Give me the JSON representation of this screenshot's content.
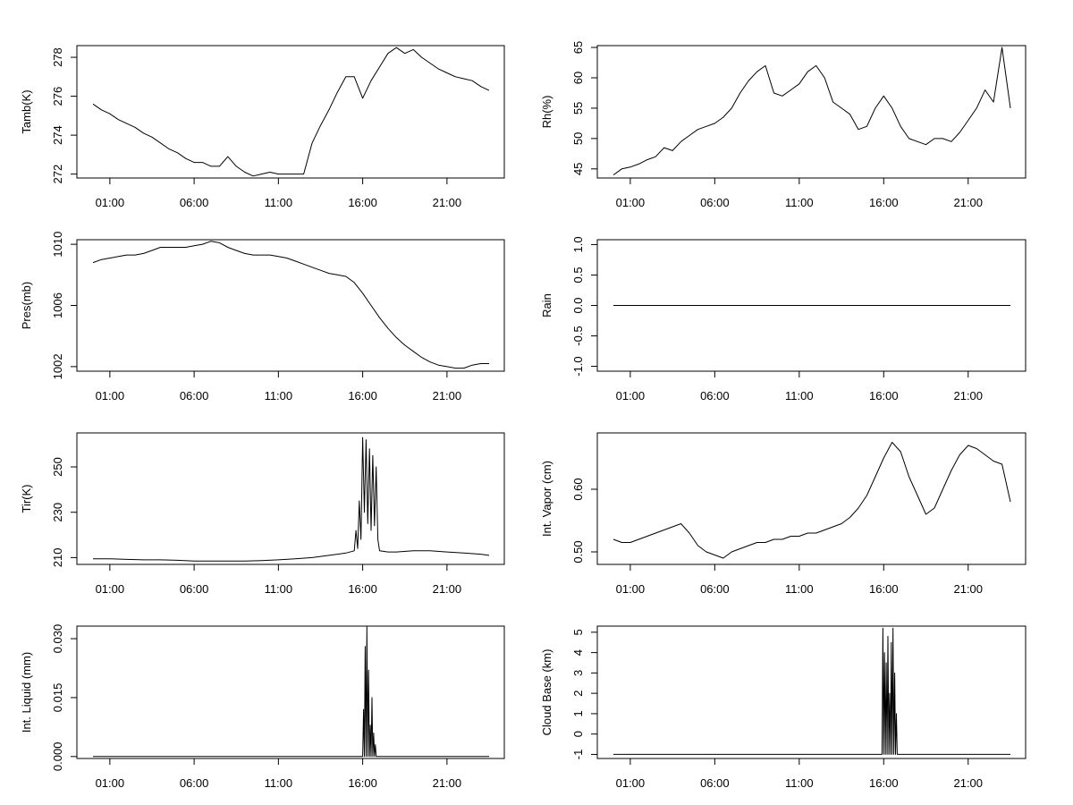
{
  "chart_data": [
    {
      "type": "line",
      "ylabel": "Tamb(K)",
      "xticks": [
        "01:00",
        "06:00",
        "11:00",
        "16:00",
        "21:00"
      ],
      "yticks": [
        "272",
        "274",
        "276",
        "278"
      ],
      "ylim": [
        271.8,
        278.6
      ],
      "series": [
        {
          "x": [
            0,
            0.5,
            1,
            1.5,
            2,
            2.5,
            3,
            3.5,
            4,
            4.5,
            5,
            5.5,
            6,
            6.5,
            7,
            7.5,
            8,
            8.5,
            9,
            9.5,
            10,
            10.5,
            11,
            11.5,
            12,
            12.5,
            13,
            13.5,
            14,
            14.5,
            15,
            15.5,
            16,
            16.5,
            17,
            17.5,
            18,
            18.5,
            19,
            19.5,
            20,
            20.5,
            21,
            21.5,
            22,
            22.5,
            23,
            23.5
          ],
          "y": [
            275.6,
            275.3,
            275.1,
            274.8,
            274.6,
            274.4,
            274.1,
            273.9,
            273.6,
            273.3,
            273.1,
            272.8,
            272.6,
            272.6,
            272.4,
            272.4,
            272.9,
            272.4,
            272.1,
            271.9,
            272.0,
            272.1,
            272.0,
            272.0,
            272.0,
            272.0,
            273.6,
            274.5,
            275.3,
            276.2,
            277.0,
            277.0,
            275.9,
            276.8,
            277.5,
            278.2,
            278.5,
            278.2,
            278.4,
            278.0,
            277.7,
            277.4,
            277.2,
            277.0,
            276.9,
            276.8,
            276.5,
            276.3
          ]
        }
      ]
    },
    {
      "type": "line",
      "ylabel": "Rh(%)",
      "xticks": [
        "01:00",
        "06:00",
        "11:00",
        "16:00",
        "21:00"
      ],
      "yticks": [
        "45",
        "50",
        "55",
        "60",
        "65"
      ],
      "ylim": [
        43.5,
        65.3
      ],
      "series": [
        {
          "x": [
            0,
            0.5,
            1,
            1.5,
            2,
            2.5,
            3,
            3.5,
            4,
            4.5,
            5,
            5.5,
            6,
            6.5,
            7,
            7.5,
            8,
            8.5,
            9,
            9.5,
            10,
            10.5,
            11,
            11.5,
            12,
            12.5,
            13,
            13.5,
            14,
            14.5,
            15,
            15.5,
            16,
            16.5,
            17,
            17.5,
            18,
            18.5,
            19,
            19.5,
            20,
            20.5,
            21,
            21.5,
            22,
            22.5,
            23,
            23.5
          ],
          "y": [
            44.0,
            45.0,
            45.3,
            45.8,
            46.5,
            47.0,
            48.5,
            48.0,
            49.5,
            50.5,
            51.5,
            52.0,
            52.5,
            53.5,
            55.0,
            57.5,
            59.5,
            61.0,
            62.0,
            57.5,
            57.0,
            58.0,
            59.0,
            61.0,
            62.0,
            60.0,
            56.0,
            55.0,
            54.0,
            51.5,
            52.0,
            55.0,
            57.0,
            55.0,
            52.0,
            50.0,
            49.5,
            49.0,
            50.0,
            50.0,
            49.5,
            51.0,
            53.0,
            55.0,
            58.0,
            56.0,
            65.0,
            55.0
          ]
        }
      ]
    },
    {
      "type": "line",
      "ylabel": "Pres(mb)",
      "xticks": [
        "01:00",
        "06:00",
        "11:00",
        "16:00",
        "21:00"
      ],
      "yticks": [
        "1002",
        "1006",
        "1010"
      ],
      "ylim": [
        1001.7,
        1010.3
      ],
      "series": [
        {
          "x": [
            0,
            0.5,
            1,
            1.5,
            2,
            2.5,
            3,
            3.5,
            4,
            4.5,
            5,
            5.5,
            6,
            6.5,
            7,
            7.5,
            8,
            8.5,
            9,
            9.5,
            10,
            10.5,
            11,
            11.5,
            12,
            12.5,
            13,
            13.5,
            14,
            14.5,
            15,
            15.5,
            16,
            16.5,
            17,
            17.5,
            18,
            18.5,
            19,
            19.5,
            20,
            20.5,
            21,
            21.5,
            22,
            22.5,
            23,
            23.5
          ],
          "y": [
            1008.8,
            1009.0,
            1009.1,
            1009.2,
            1009.3,
            1009.3,
            1009.4,
            1009.6,
            1009.8,
            1009.8,
            1009.8,
            1009.8,
            1009.9,
            1010.0,
            1010.2,
            1010.1,
            1009.8,
            1009.6,
            1009.4,
            1009.3,
            1009.3,
            1009.3,
            1009.2,
            1009.1,
            1008.9,
            1008.7,
            1008.5,
            1008.3,
            1008.1,
            1008.0,
            1007.9,
            1007.5,
            1006.8,
            1006.0,
            1005.2,
            1004.5,
            1003.9,
            1003.4,
            1003.0,
            1002.6,
            1002.3,
            1002.1,
            1002.0,
            1001.9,
            1001.9,
            1002.1,
            1002.2,
            1002.2
          ]
        }
      ]
    },
    {
      "type": "line",
      "ylabel": "Rain",
      "xticks": [
        "01:00",
        "06:00",
        "11:00",
        "16:00",
        "21:00"
      ],
      "yticks": [
        "-1.0",
        "-0.5",
        "0.0",
        "0.5",
        "1.0"
      ],
      "ylim": [
        -1.08,
        1.08
      ],
      "series": [
        {
          "x": [
            0,
            23.5
          ],
          "y": [
            0,
            0
          ]
        }
      ]
    },
    {
      "type": "line",
      "ylabel": "Tir(K)",
      "xticks": [
        "01:00",
        "06:00",
        "11:00",
        "16:00",
        "21:00"
      ],
      "yticks": [
        "210",
        "230",
        "250"
      ],
      "ylim": [
        207,
        265
      ],
      "series": [
        {
          "x": [
            0,
            1,
            2,
            3,
            4,
            5,
            6,
            7,
            8,
            9,
            10,
            11,
            12,
            13,
            14,
            15,
            15.5,
            15.6,
            15.7,
            15.8,
            15.9,
            16.0,
            16.1,
            16.2,
            16.3,
            16.4,
            16.5,
            16.6,
            16.7,
            16.8,
            16.9,
            17.0,
            17.5,
            18,
            19,
            20,
            21,
            22,
            23,
            23.5
          ],
          "y": [
            209.5,
            209.5,
            209.2,
            209,
            209,
            208.8,
            208.5,
            208.5,
            208.5,
            208.5,
            208.7,
            209,
            209.5,
            210,
            211,
            212,
            213,
            222,
            214,
            235,
            218,
            263,
            230,
            262,
            225,
            258,
            222,
            255,
            224,
            250,
            218,
            213,
            212.5,
            212.5,
            213,
            213,
            212.5,
            212,
            211.5,
            211
          ]
        }
      ]
    },
    {
      "type": "line",
      "ylabel": "Int. Vapor (cm)",
      "xticks": [
        "01:00",
        "06:00",
        "11:00",
        "16:00",
        "21:00"
      ],
      "yticks": [
        "0.50",
        "0.60"
      ],
      "ylim": [
        0.48,
        0.69
      ],
      "series": [
        {
          "x": [
            0,
            0.5,
            1,
            1.5,
            2,
            2.5,
            3,
            3.5,
            4,
            4.5,
            5,
            5.5,
            6,
            6.5,
            7,
            7.5,
            8,
            8.5,
            9,
            9.5,
            10,
            10.5,
            11,
            11.5,
            12,
            12.5,
            13,
            13.5,
            14,
            14.5,
            15,
            15.5,
            16,
            16.5,
            17,
            17.5,
            18,
            18.5,
            19,
            19.5,
            20,
            20.5,
            21,
            21.5,
            22,
            22.5,
            23,
            23.5
          ],
          "y": [
            0.52,
            0.515,
            0.515,
            0.52,
            0.525,
            0.53,
            0.535,
            0.54,
            0.545,
            0.53,
            0.51,
            0.5,
            0.495,
            0.49,
            0.5,
            0.505,
            0.51,
            0.515,
            0.515,
            0.52,
            0.52,
            0.525,
            0.525,
            0.53,
            0.53,
            0.535,
            0.54,
            0.545,
            0.555,
            0.57,
            0.59,
            0.62,
            0.65,
            0.675,
            0.66,
            0.62,
            0.59,
            0.56,
            0.57,
            0.6,
            0.63,
            0.655,
            0.67,
            0.665,
            0.655,
            0.645,
            0.64,
            0.58
          ]
        }
      ]
    },
    {
      "type": "line",
      "ylabel": "Int. Liquid (mm)",
      "xticks": [
        "01:00",
        "06:00",
        "11:00",
        "16:00",
        "21:00"
      ],
      "yticks": [
        "0.000",
        "0.015",
        "0.030"
      ],
      "ylim": [
        -0.0005,
        0.0332
      ],
      "series": [
        {
          "x": [
            0,
            16.0,
            16.05,
            16.1,
            16.15,
            16.2,
            16.25,
            16.3,
            16.35,
            16.4,
            16.45,
            16.5,
            16.55,
            16.6,
            16.65,
            16.7,
            16.75,
            16.8,
            16.85,
            23.5
          ],
          "y": [
            0,
            0,
            0.012,
            0,
            0.028,
            0,
            0.033,
            0,
            0.022,
            0,
            0.008,
            0,
            0.015,
            0,
            0.006,
            0,
            0.003,
            0,
            0,
            0
          ]
        }
      ]
    },
    {
      "type": "line",
      "ylabel": "Cloud Base (km)",
      "xticks": [
        "01:00",
        "06:00",
        "11:00",
        "16:00",
        "21:00"
      ],
      "yticks": [
        "-1",
        "0",
        "1",
        "2",
        "3",
        "4",
        "5"
      ],
      "ylim": [
        -1.2,
        5.3
      ],
      "series": [
        {
          "x": [
            0,
            15.9,
            15.95,
            16.0,
            16.05,
            16.1,
            16.15,
            16.2,
            16.25,
            16.3,
            16.35,
            16.4,
            16.45,
            16.5,
            16.55,
            16.6,
            16.65,
            16.7,
            16.75,
            16.8,
            16.85,
            23.5
          ],
          "y": [
            -1,
            -1,
            5.2,
            -1,
            4.0,
            -1,
            3.5,
            -1,
            4.8,
            -1,
            2.0,
            -1,
            4.5,
            -1,
            5.2,
            -1,
            3.0,
            -1,
            1.0,
            -1,
            -1,
            -1
          ]
        }
      ]
    }
  ]
}
